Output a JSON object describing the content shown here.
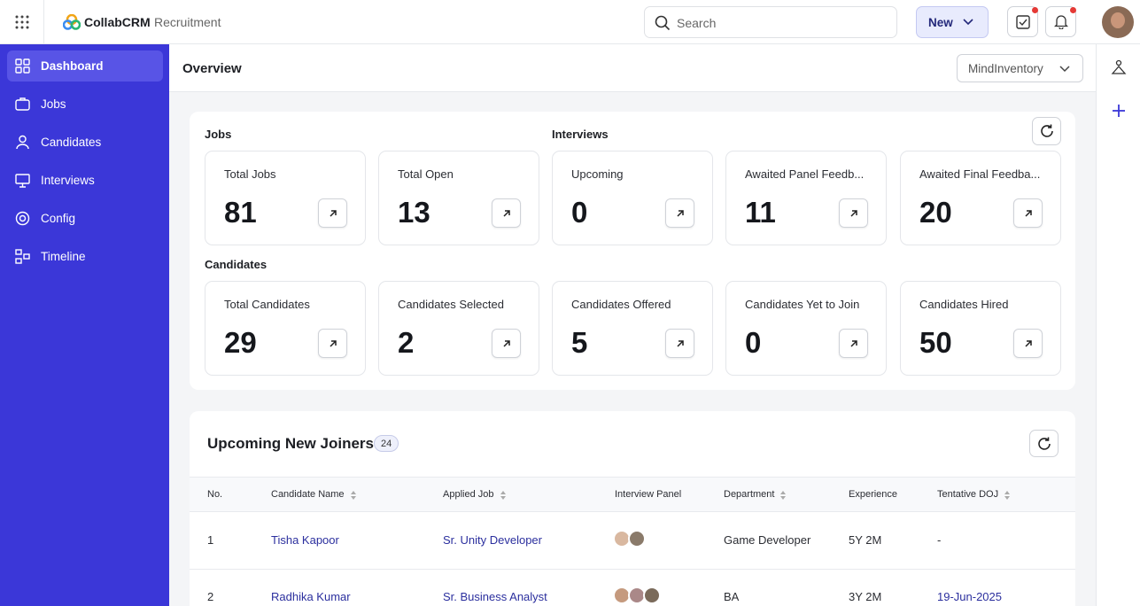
{
  "header": {
    "brand": "CollabCRM",
    "product": "Recruitment",
    "search_placeholder": "Search",
    "new_button": "New"
  },
  "sidebar": {
    "items": [
      "Dashboard",
      "Jobs",
      "Candidates",
      "Interviews",
      "Config",
      "Timeline"
    ]
  },
  "overview": {
    "title": "Overview",
    "org_select": "MindInventory"
  },
  "stats": {
    "jobs": {
      "label": "Jobs",
      "cards": [
        {
          "label": "Total Jobs",
          "value": 81
        },
        {
          "label": "Total Open",
          "value": 13
        }
      ]
    },
    "interviews": {
      "label": "Interviews",
      "cards": [
        {
          "label": "Upcoming",
          "value": 0
        },
        {
          "label": "Awaited Panel Feedb...",
          "value": 11
        },
        {
          "label": "Awaited Final Feedba...",
          "value": 20
        }
      ]
    },
    "candidates": {
      "label": "Candidates",
      "cards": [
        {
          "label": "Total Candidates",
          "value": 29
        },
        {
          "label": "Candidates Selected",
          "value": 2
        },
        {
          "label": "Candidates Offered",
          "value": 5
        },
        {
          "label": "Candidates Yet to Join",
          "value": 0
        },
        {
          "label": "Candidates Hired",
          "value": 50
        }
      ]
    }
  },
  "joiners": {
    "title": "Upcoming New Joiners",
    "count": 24,
    "columns": [
      "No.",
      "Candidate Name",
      "Applied Job",
      "Interview Panel",
      "Department",
      "Experience",
      "Tentative DOJ"
    ],
    "rows": [
      {
        "no": 1,
        "name": "Tisha Kapoor",
        "job": "Sr. Unity Developer",
        "department": "Game Developer",
        "experience": "5Y 2M",
        "doj": "-"
      },
      {
        "no": 2,
        "name": "Radhika Kumar",
        "job": "Sr. Business Analyst",
        "department": "BA",
        "experience": "3Y 2M",
        "doj": "19-Jun-2025"
      }
    ]
  }
}
